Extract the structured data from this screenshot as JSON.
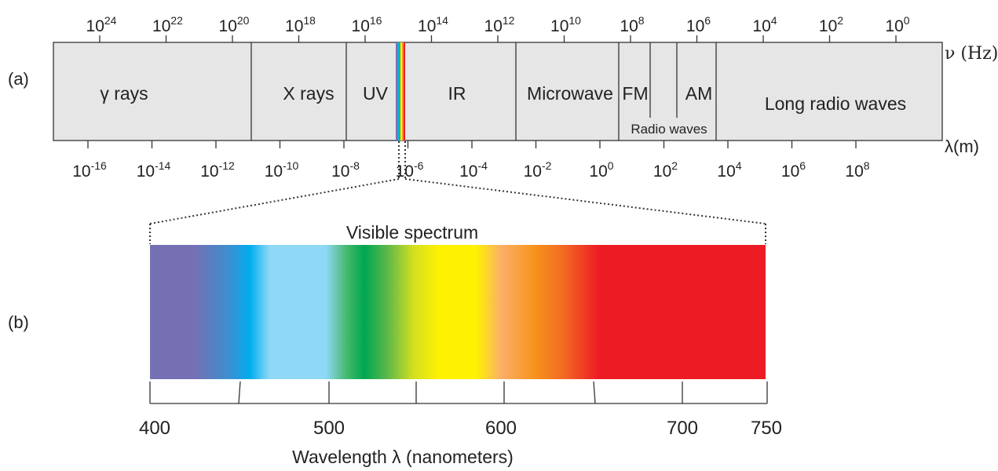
{
  "panel_a": {
    "label": "(a)",
    "freq_axis": {
      "unit_label": "ν (Hz)",
      "ticks": [
        {
          "base": "10",
          "exp": "24"
        },
        {
          "base": "10",
          "exp": "22"
        },
        {
          "base": "10",
          "exp": "20"
        },
        {
          "base": "10",
          "exp": "18"
        },
        {
          "base": "10",
          "exp": "16"
        },
        {
          "base": "10",
          "exp": "14"
        },
        {
          "base": "10",
          "exp": "12"
        },
        {
          "base": "10",
          "exp": "10"
        },
        {
          "base": "10",
          "exp": "8"
        },
        {
          "base": "10",
          "exp": "6"
        },
        {
          "base": "10",
          "exp": "4"
        },
        {
          "base": "10",
          "exp": "2"
        },
        {
          "base": "10",
          "exp": "0"
        }
      ]
    },
    "wave_axis": {
      "unit_label": "λ(m)",
      "ticks": [
        {
          "base": "10",
          "exp": "-16"
        },
        {
          "base": "10",
          "exp": "-14"
        },
        {
          "base": "10",
          "exp": "-12"
        },
        {
          "base": "10",
          "exp": "-10"
        },
        {
          "base": "10",
          "exp": "-8"
        },
        {
          "base": "10",
          "exp": "-6"
        },
        {
          "base": "10",
          "exp": "-4"
        },
        {
          "base": "10",
          "exp": "-2"
        },
        {
          "base": "10",
          "exp": "0"
        },
        {
          "base": "10",
          "exp": "2"
        },
        {
          "base": "10",
          "exp": "4"
        },
        {
          "base": "10",
          "exp": "6"
        },
        {
          "base": "10",
          "exp": "8"
        }
      ]
    },
    "bands": {
      "gamma": "γ rays",
      "xray": "X rays",
      "uv": "UV",
      "ir": "IR",
      "microwave": "Microwave",
      "fm": "FM",
      "am": "AM",
      "radio": "Radio waves",
      "long_radio": "Long radio waves"
    },
    "colors": {
      "band_fill": "#e6e6e6",
      "stroke": "#333333",
      "mini_spectrum": [
        "#7b6fb2",
        "#00aeef",
        "#3fb54a",
        "#fff200",
        "#f7941d",
        "#ed1c24"
      ]
    }
  },
  "panel_b": {
    "label": "(b)",
    "title": "Visible spectrum",
    "axis_label": "Wavelength λ (nanometers)",
    "ticks": [
      "400",
      "500",
      "600",
      "700",
      "750"
    ],
    "gradient": [
      {
        "nm": 400,
        "color": "#7570b3"
      },
      {
        "nm": 425,
        "color": "#7570b3"
      },
      {
        "nm": 445,
        "color": "#3b8fd0"
      },
      {
        "nm": 457,
        "color": "#00aeef"
      },
      {
        "nm": 468,
        "color": "#8fd8f6"
      },
      {
        "nm": 500,
        "color": "#8fd8f6"
      },
      {
        "nm": 512,
        "color": "#44b96a"
      },
      {
        "nm": 522,
        "color": "#00a651"
      },
      {
        "nm": 535,
        "color": "#5db84a"
      },
      {
        "nm": 550,
        "color": "#d5e021"
      },
      {
        "nm": 565,
        "color": "#fff200"
      },
      {
        "nm": 585,
        "color": "#fff200"
      },
      {
        "nm": 600,
        "color": "#fbae68"
      },
      {
        "nm": 618,
        "color": "#f7941d"
      },
      {
        "nm": 635,
        "color": "#f26b21"
      },
      {
        "nm": 655,
        "color": "#ed1c24"
      },
      {
        "nm": 750,
        "color": "#ed1c24"
      }
    ]
  }
}
